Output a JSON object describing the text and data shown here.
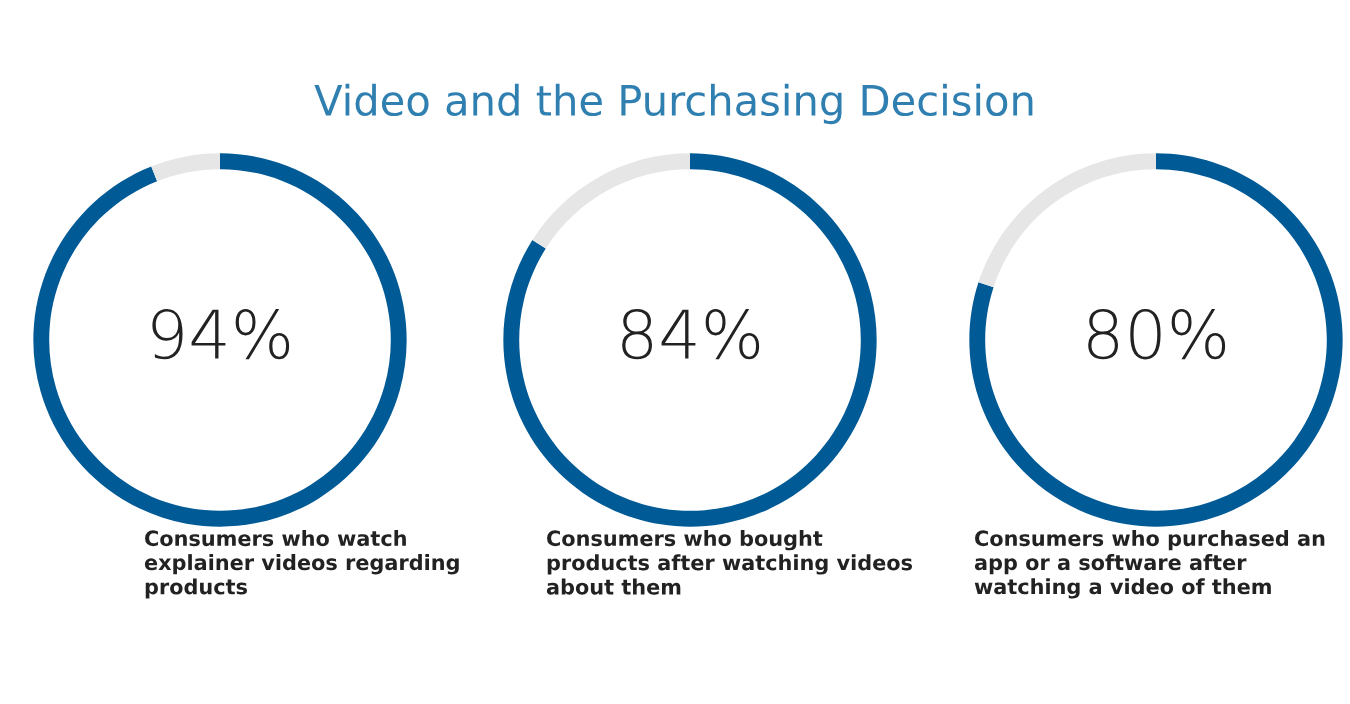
{
  "chart_data": [
    {
      "type": "donut",
      "title": "Video and the Purchasing Decision",
      "categories": [
        null,
        null
      ],
      "values": [
        94,
        6
      ],
      "colors": [
        "#005a96",
        "#e6e6e6"
      ],
      "value_labels": [
        "94%",
        null
      ],
      "annotations": [
        "Consumers who watch\nexplainer videos regarding\nproducts"
      ]
    },
    {
      "type": "donut",
      "categories": [
        null,
        null
      ],
      "values": [
        84,
        16
      ],
      "colors": [
        "#005a96",
        "#e6e6e6"
      ],
      "value_labels": [
        "84%",
        null
      ],
      "annotations": [
        "Consumers who bought\nproducts after watching videos\nabout them"
      ]
    },
    {
      "type": "donut",
      "categories": [
        null,
        null
      ],
      "values": [
        80,
        20
      ],
      "colors": [
        "#005a96",
        "#e6e6e6"
      ],
      "value_labels": [
        "80%",
        null
      ],
      "annotations": [
        "Consumers who purchased an\napp or a software after\nwatching a video of them"
      ]
    }
  ]
}
